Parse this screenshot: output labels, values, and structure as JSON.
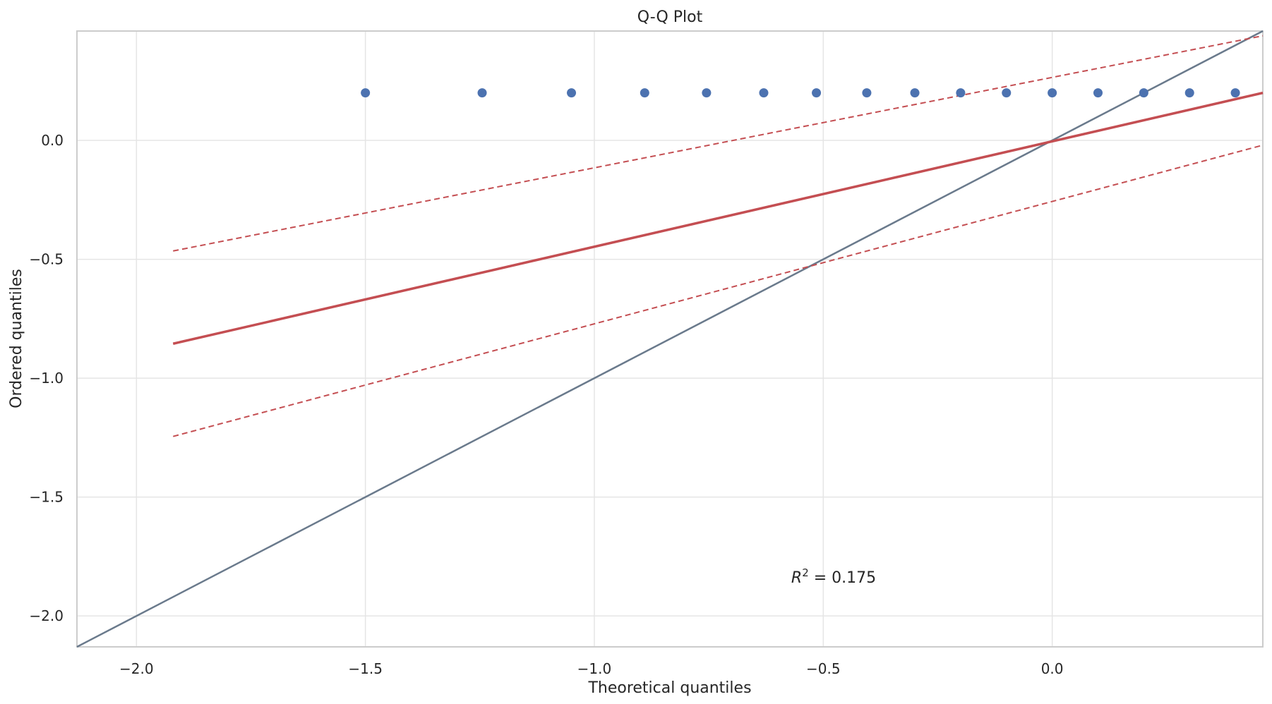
{
  "chart_data": {
    "type": "scatter",
    "title": "Q-Q Plot",
    "xlabel": "Theoretical quantiles",
    "ylabel": "Ordered quantiles",
    "xlim": [
      -2.13,
      0.46
    ],
    "ylim": [
      -2.13,
      0.46
    ],
    "grid": true,
    "xticks": [
      -2.0,
      -1.5,
      -1.0,
      -0.5,
      0.0
    ],
    "yticks": [
      -2.0,
      -1.5,
      -1.0,
      -0.5,
      0.0
    ],
    "xtick_labels": [
      "−2.0",
      "−1.5",
      "−1.0",
      "−0.5",
      "0.0"
    ],
    "ytick_labels": [
      "−2.0",
      "−1.5",
      "−1.0",
      "−0.5",
      "0.0"
    ],
    "points": {
      "x": [
        -1.5,
        -1.245,
        -1.05,
        -0.89,
        -0.755,
        -0.63,
        -0.515,
        -0.405,
        -0.3,
        -0.2,
        -0.1,
        0.0,
        0.1,
        0.2,
        0.3,
        0.4
      ],
      "y": [
        0.2,
        0.2,
        0.2,
        0.2,
        0.2,
        0.2,
        0.2,
        0.2,
        0.2,
        0.2,
        0.2,
        0.2,
        0.2,
        0.2,
        0.2,
        0.2
      ],
      "color": "#4c72b0"
    },
    "fit_line": {
      "x": [
        -1.92,
        0.46
      ],
      "y": [
        -0.855,
        0.2
      ],
      "color": "#c44e52"
    },
    "upper_band": {
      "x": [
        -1.92,
        0.46
      ],
      "y": [
        -0.465,
        0.44
      ],
      "color": "#c44e52",
      "style": "dashed"
    },
    "lower_band": {
      "x": [
        -1.92,
        0.46
      ],
      "y": [
        -1.245,
        -0.02
      ],
      "color": "#c44e52",
      "style": "dashed"
    },
    "reference_line": {
      "x": [
        -2.13,
        0.46
      ],
      "y": [
        -2.13,
        0.46
      ],
      "color": "#6a7a8c"
    },
    "annotation": {
      "text_main": "R",
      "text_sup": "2",
      "text_rest": " = 0.175",
      "x": -0.57,
      "y": -1.86
    }
  }
}
